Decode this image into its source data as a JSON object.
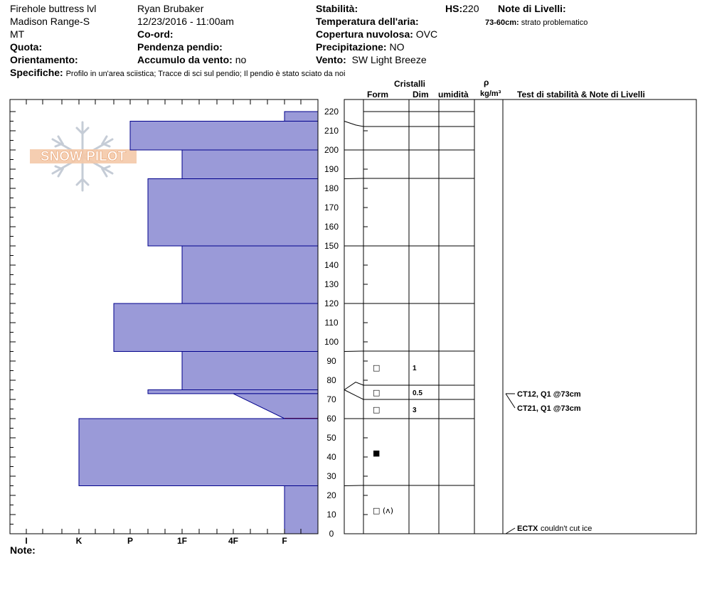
{
  "header": {
    "location": "Firehole buttress lvl",
    "range": "Madison Range-S",
    "state": "MT",
    "quota_label": "Quota:",
    "orient_label": "Orientamento:",
    "observer": "Ryan Brubaker",
    "datetime": "12/23/2016 - 11:00am",
    "coord_label": "Co-ord:",
    "slope_label": "Pendenza pendio:",
    "wind_load_label": "Accumulo da vento:",
    "wind_load_value": "no",
    "stability_label": "Stabilità:",
    "hs_label": "HS:",
    "hs_value": "220",
    "air_temp_label": "Temperatura dell'aria:",
    "cloud_label": "Copertura nuvolosa:",
    "cloud_value": "OVC",
    "precip_label": "Precipitazione:",
    "precip_value": "NO",
    "wind_label": "Vento:",
    "wind_value": "SW  Light Breeze",
    "layer_notes_label": "Note di Livelli:",
    "layer_note_range": "73-60cm:",
    "layer_note_text": "strato problematico",
    "specifics_label": "Specifiche:",
    "specifics_text": "Profilo in un'area sciistica; Tracce di sci sul pendio; Il pendio è stato sciato da noi",
    "notes_label": "Note:"
  },
  "columns": {
    "crystals": "Cristalli",
    "form": "Form",
    "dim": "Dim",
    "moisture": "umidità",
    "rho": "ρ",
    "density_unit": "kg/m³",
    "tests": "Test di stabilità & Note di Livelli"
  },
  "logo_text": "SNOW PILOT",
  "colors": {
    "hardness_fill": "#9a9ad8",
    "hardness_stroke": "#00008b",
    "problem_layer": "#8b0000"
  },
  "chart_data": {
    "type": "snow_profile",
    "y_axis": {
      "min": 0,
      "max": 220,
      "unit": "cm",
      "ticks": [
        0,
        10,
        20,
        30,
        40,
        50,
        60,
        70,
        80,
        90,
        100,
        110,
        120,
        130,
        140,
        150,
        160,
        170,
        180,
        190,
        200,
        210,
        220
      ]
    },
    "hardness_axis": {
      "labels": [
        "I",
        "K",
        "P",
        "1F",
        "4F",
        "F"
      ]
    },
    "hardness_layers": [
      {
        "top": 220,
        "bottom": 215,
        "hardness": "F"
      },
      {
        "top": 215,
        "bottom": 200,
        "hardness": "P-"
      },
      {
        "top": 200,
        "bottom": 185,
        "hardness": "1F"
      },
      {
        "top": 185,
        "bottom": 150,
        "hardness": "1F+"
      },
      {
        "top": 150,
        "bottom": 120,
        "hardness": "1F"
      },
      {
        "top": 120,
        "bottom": 95,
        "hardness": "P"
      },
      {
        "top": 95,
        "bottom": 75,
        "hardness": "1F"
      },
      {
        "top": 75,
        "bottom": 73,
        "hardness": "1F+"
      },
      {
        "top": 73,
        "bottom": 60,
        "hardness": "4F to F"
      },
      {
        "top": 60,
        "bottom": 25,
        "hardness": "K"
      },
      {
        "top": 25,
        "bottom": 0,
        "hardness": "F"
      }
    ],
    "layer_boundaries": [
      220,
      213,
      200,
      185,
      150,
      120,
      95,
      78,
      70,
      60,
      25
    ],
    "crystals": [
      {
        "depth": 87,
        "form": "□",
        "size": "1"
      },
      {
        "depth": 74,
        "form": "□",
        "size": "0.5"
      },
      {
        "depth": 65,
        "form": "□",
        "size": "3"
      },
      {
        "depth": 42,
        "form": "■",
        "size": ""
      },
      {
        "depth": 12,
        "form": "□ (ʌ)",
        "size": ""
      }
    ],
    "stability_tests": [
      {
        "depth": 73,
        "text": "CT12, Q1 @73cm"
      },
      {
        "depth": 73,
        "text": "CT21, Q1 @73cm"
      },
      {
        "depth": 0,
        "code": "ECTX",
        "text": "couldn't cut ice"
      }
    ]
  }
}
